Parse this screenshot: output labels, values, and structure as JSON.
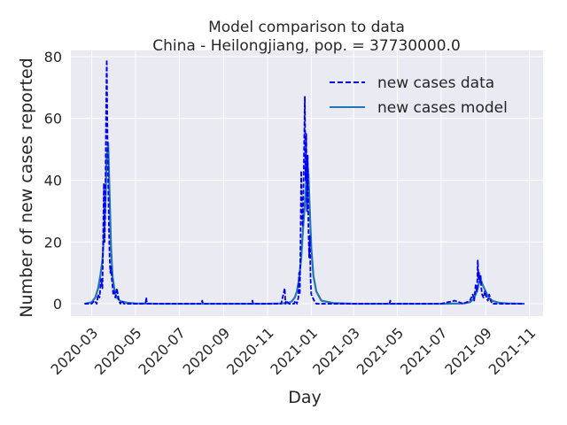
{
  "chart_data": {
    "type": "line",
    "title": "Model comparison to data",
    "subtitle": "China - Heilongjiang, pop. = 37730000.0",
    "xlabel": "Day",
    "ylabel": "Number of new cases reported",
    "xlim": [
      "2020-02-01",
      "2021-11-20"
    ],
    "ylim": [
      -4,
      82
    ],
    "yticks": [
      0,
      20,
      40,
      60,
      80
    ],
    "xticks": [
      "2020-03",
      "2020-05",
      "2020-07",
      "2020-09",
      "2020-11",
      "2021-01",
      "2021-03",
      "2021-05",
      "2021-07",
      "2021-09",
      "2021-11"
    ],
    "grid": true,
    "legend_position": "top-right",
    "series": [
      {
        "name": "new cases data",
        "style": "dashed",
        "color": "#0000ee",
        "x": [
          "2020-02-20",
          "2020-02-25",
          "2020-03-01",
          "2020-03-05",
          "2020-03-08",
          "2020-03-10",
          "2020-03-12",
          "2020-03-14",
          "2020-03-16",
          "2020-03-18",
          "2020-03-19",
          "2020-03-20",
          "2020-03-21",
          "2020-03-22",
          "2020-03-23",
          "2020-03-24",
          "2020-03-25",
          "2020-03-26",
          "2020-03-27",
          "2020-03-28",
          "2020-03-29",
          "2020-03-30",
          "2020-03-31",
          "2020-04-01",
          "2020-04-03",
          "2020-04-05",
          "2020-04-08",
          "2020-04-10",
          "2020-04-12",
          "2020-04-15",
          "2020-04-20",
          "2020-05-01",
          "2020-05-15",
          "2020-05-16",
          "2020-05-17",
          "2020-06-01",
          "2020-07-01",
          "2020-08-01",
          "2020-08-02",
          "2020-08-03",
          "2020-09-01",
          "2020-10-01",
          "2020-10-10",
          "2020-10-11",
          "2020-10-12",
          "2020-11-01",
          "2020-11-20",
          "2020-11-25",
          "2020-11-26",
          "2020-11-27",
          "2020-12-01",
          "2020-12-08",
          "2020-12-10",
          "2020-12-12",
          "2020-12-14",
          "2020-12-15",
          "2020-12-16",
          "2020-12-17",
          "2020-12-18",
          "2020-12-19",
          "2020-12-20",
          "2020-12-21",
          "2020-12-22",
          "2020-12-23",
          "2020-12-24",
          "2020-12-25",
          "2020-12-26",
          "2020-12-27",
          "2020-12-28",
          "2020-12-29",
          "2020-12-30",
          "2020-12-31",
          "2021-01-01",
          "2021-01-03",
          "2021-01-05",
          "2021-01-08",
          "2021-01-12",
          "2021-01-20",
          "2021-02-01",
          "2021-03-01",
          "2021-04-01",
          "2021-04-20",
          "2021-04-21",
          "2021-04-22",
          "2021-05-01",
          "2021-06-01",
          "2021-07-01",
          "2021-07-20",
          "2021-08-01",
          "2021-08-10",
          "2021-08-14",
          "2021-08-16",
          "2021-08-18",
          "2021-08-20",
          "2021-08-21",
          "2021-08-22",
          "2021-08-23",
          "2021-08-24",
          "2021-08-25",
          "2021-08-26",
          "2021-08-27",
          "2021-08-29",
          "2021-08-31",
          "2021-09-02",
          "2021-09-04",
          "2021-09-06",
          "2021-09-08",
          "2021-09-10",
          "2021-09-15",
          "2021-09-20",
          "2021-10-01",
          "2021-10-15",
          "2021-10-25"
        ],
        "values": [
          0,
          0,
          0,
          1,
          0,
          3,
          2,
          8,
          5,
          39,
          20,
          30,
          60,
          79,
          55,
          40,
          25,
          15,
          10,
          12,
          8,
          6,
          3,
          4,
          2,
          5,
          1,
          0,
          1,
          0,
          0,
          0,
          0,
          2,
          0,
          0,
          0,
          0,
          1,
          0,
          0,
          0,
          0,
          1,
          0,
          0,
          0,
          5,
          0,
          1,
          0,
          0,
          1,
          0,
          2,
          10,
          3,
          20,
          43,
          30,
          25,
          36,
          50,
          67,
          40,
          55,
          30,
          48,
          25,
          15,
          22,
          8,
          3,
          2,
          1,
          0,
          0,
          0,
          0,
          0,
          0,
          0,
          1,
          0,
          0,
          0,
          0,
          1,
          0,
          1,
          3,
          1,
          6,
          4,
          14,
          8,
          10,
          7,
          9,
          5,
          3,
          2,
          4,
          2,
          1,
          3,
          1,
          0,
          0,
          0,
          0,
          0,
          0
        ]
      },
      {
        "name": "new cases model",
        "style": "solid",
        "color": "#1f77b4",
        "x": [
          "2020-02-20",
          "2020-03-01",
          "2020-03-06",
          "2020-03-10",
          "2020-03-13",
          "2020-03-16",
          "2020-03-18",
          "2020-03-20",
          "2020-03-22",
          "2020-03-24",
          "2020-03-26",
          "2020-03-28",
          "2020-03-30",
          "2020-04-02",
          "2020-04-05",
          "2020-04-10",
          "2020-04-20",
          "2020-05-01",
          "2020-06-01",
          "2020-07-01",
          "2020-08-01",
          "2020-09-01",
          "2020-10-01",
          "2020-11-01",
          "2020-11-20",
          "2020-12-01",
          "2020-12-05",
          "2020-12-09",
          "2020-12-12",
          "2020-12-15",
          "2020-12-18",
          "2020-12-21",
          "2020-12-24",
          "2020-12-26",
          "2020-12-28",
          "2020-12-30",
          "2021-01-01",
          "2021-01-04",
          "2021-01-08",
          "2021-01-15",
          "2021-02-01",
          "2021-03-01",
          "2021-04-01",
          "2021-05-01",
          "2021-06-01",
          "2021-07-01",
          "2021-08-01",
          "2021-08-10",
          "2021-08-15",
          "2021-08-18",
          "2021-08-21",
          "2021-08-23",
          "2021-08-25",
          "2021-08-28",
          "2021-09-01",
          "2021-09-05",
          "2021-09-10",
          "2021-09-20",
          "2021-10-01",
          "2021-10-25"
        ],
        "values": [
          0,
          0.5,
          2,
          5,
          9,
          14,
          22,
          32,
          48,
          52,
          35,
          18,
          9,
          4,
          2,
          0.8,
          0.3,
          0.1,
          0,
          0,
          0,
          0,
          0,
          0,
          0.1,
          0.3,
          0.8,
          2,
          4,
          8,
          15,
          26,
          35,
          47,
          42,
          30,
          18,
          9,
          4,
          1,
          0.2,
          0,
          0,
          0,
          0,
          0,
          0.1,
          0.5,
          1.5,
          3,
          5,
          7,
          8,
          6,
          4,
          2,
          1,
          0.3,
          0.1,
          0
        ]
      }
    ]
  }
}
